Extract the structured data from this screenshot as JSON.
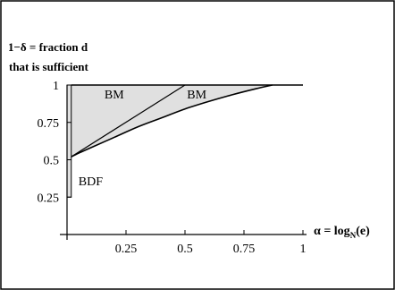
{
  "chart_data": {
    "type": "area",
    "ylabel_line1": "1−δ = fraction d",
    "ylabel_line2": "that is sufficient",
    "xlabel_alpha": "α = log",
    "xlabel_sub": "N",
    "xlabel_tail": "(e)",
    "xlim": [
      0,
      1
    ],
    "ylim": [
      0,
      1
    ],
    "x_ticks": [
      {
        "value": 0.25,
        "label": "0.25"
      },
      {
        "value": 0.5,
        "label": "0.5"
      },
      {
        "value": 0.75,
        "label": "0.75"
      },
      {
        "value": 1,
        "label": "1"
      }
    ],
    "y_ticks": [
      {
        "value": 0.25,
        "label": "0.25"
      },
      {
        "value": 0.5,
        "label": "0.5"
      },
      {
        "value": 0.75,
        "label": "0.75"
      },
      {
        "value": 1,
        "label": "1"
      }
    ],
    "bdf_bar": {
      "x_start": 0,
      "x_end": 0.018,
      "y_start": 0.25,
      "y_end": 1
    },
    "bm_line": [
      {
        "x": 0.018,
        "y": 0.52
      },
      {
        "x": 0.5,
        "y": 1
      }
    ],
    "bm_curve": [
      {
        "x": 0.018,
        "y": 0.52
      },
      {
        "x": 0.05,
        "y": 0.545
      },
      {
        "x": 0.1,
        "y": 0.58
      },
      {
        "x": 0.2,
        "y": 0.65
      },
      {
        "x": 0.3,
        "y": 0.72
      },
      {
        "x": 0.4,
        "y": 0.78
      },
      {
        "x": 0.5,
        "y": 0.84
      },
      {
        "x": 0.6,
        "y": 0.89
      },
      {
        "x": 0.7,
        "y": 0.935
      },
      {
        "x": 0.8,
        "y": 0.975
      },
      {
        "x": 0.87,
        "y": 1
      }
    ],
    "top_line": [
      {
        "x": 0.018,
        "y": 1
      },
      {
        "x": 1,
        "y": 1
      }
    ],
    "region_labels": [
      {
        "text": "BM",
        "x": 0.2,
        "y": 0.94
      },
      {
        "text": "BM",
        "x": 0.55,
        "y": 0.94
      },
      {
        "text": "BDF",
        "x": 0.1,
        "y": 0.36
      }
    ],
    "colors": {
      "shade": "#e0e0e0",
      "line": "#000000",
      "background": "#ffffff"
    }
  }
}
